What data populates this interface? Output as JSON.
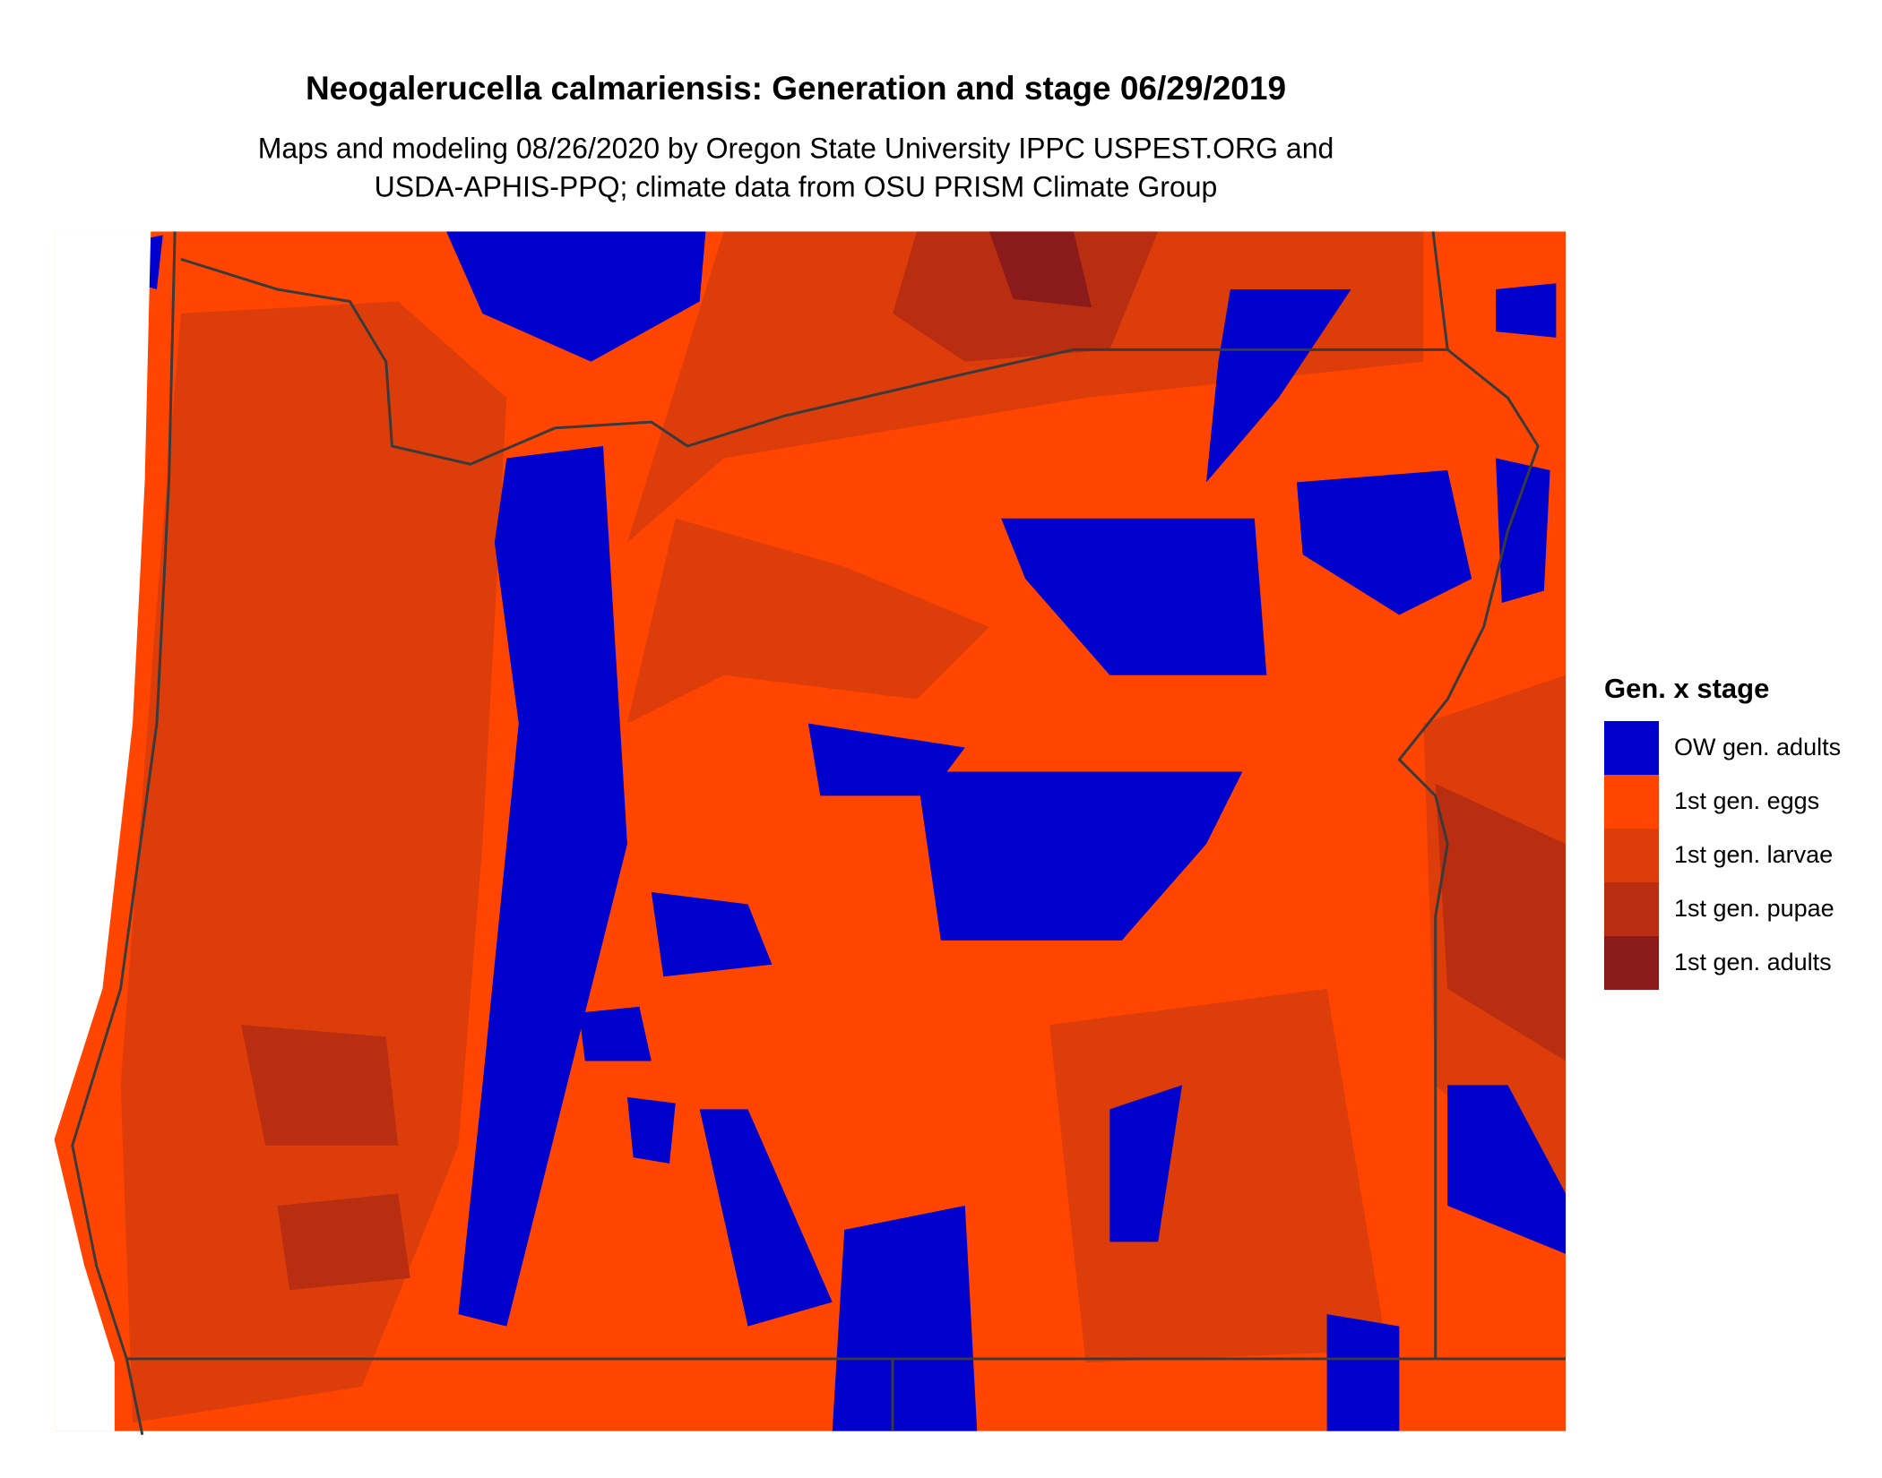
{
  "header": {
    "title": "Neogalerucella calmariensis: Generation and stage 06/29/2019",
    "subtitle_lines": [
      "Maps and modeling 08/26/2020 by Oregon State University IPPC USPEST.ORG and",
      "USDA-APHIS-PPQ; climate data from OSU PRISM Climate Group"
    ]
  },
  "legend": {
    "title": "Gen. x stage",
    "items": [
      {
        "label": "OW gen. adults",
        "color": "#0000cd"
      },
      {
        "label": "1st gen. eggs",
        "color": "#ff4500"
      },
      {
        "label": "1st gen. larvae",
        "color": "#dc3d0b"
      },
      {
        "label": "1st gen. pupae",
        "color": "#b92e10"
      },
      {
        "label": "1st gen. adults",
        "color": "#8b1a1a"
      }
    ]
  }
}
